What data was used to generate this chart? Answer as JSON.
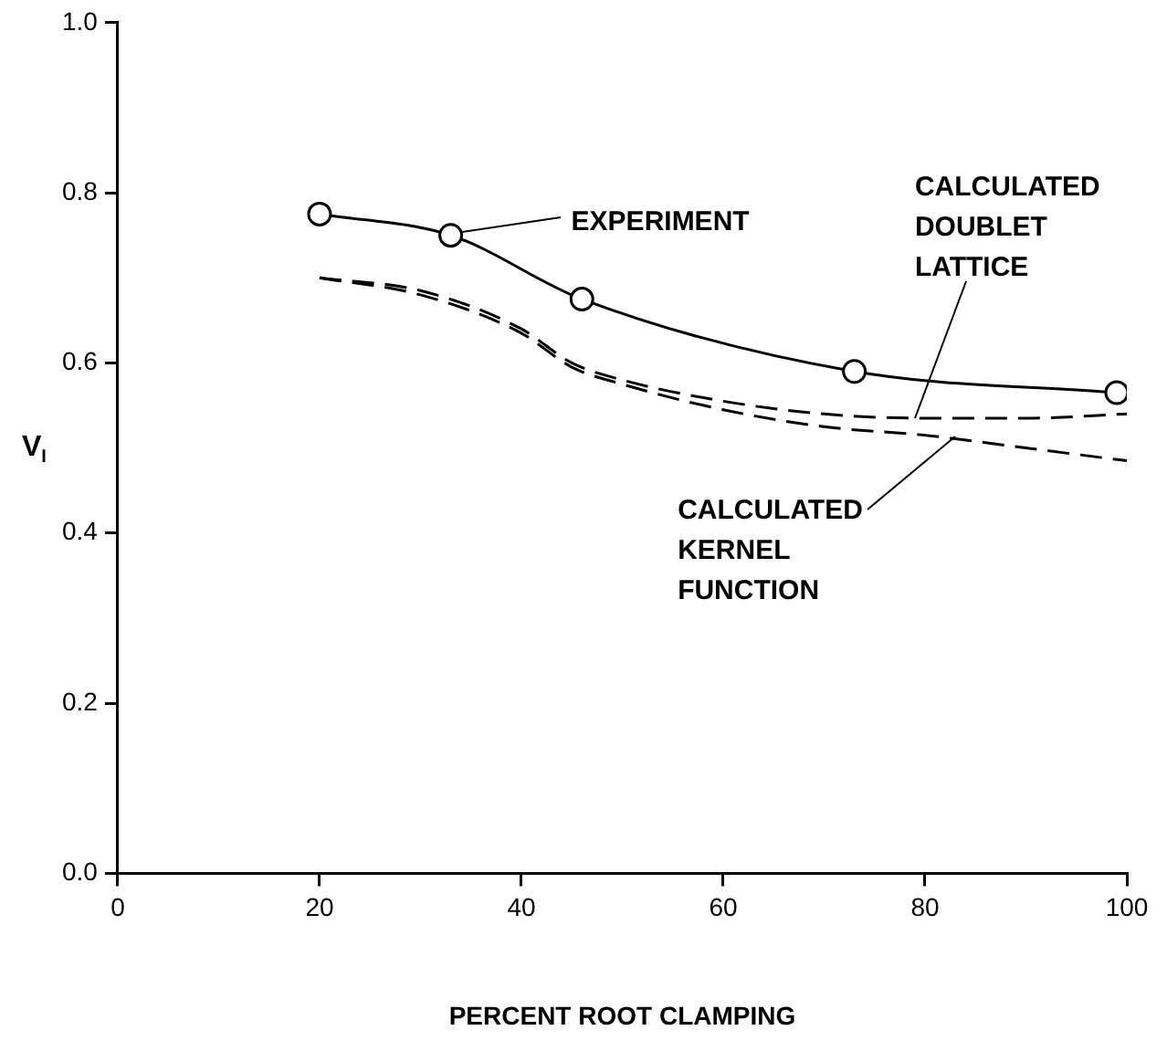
{
  "chart_data": {
    "type": "line",
    "xlabel": "PERCENT ROOT CLAMPING",
    "ylabel": "V$_{I}$",
    "xlim": [
      0,
      100
    ],
    "xticks": [
      0,
      20,
      40,
      60,
      80,
      100
    ],
    "ylim": [
      0,
      1
    ],
    "yticks": [
      {
        "value": 0,
        "label": "0.0"
      },
      {
        "value": 0.2,
        "label": "0.2"
      },
      {
        "value": 0.4,
        "label": "0.4"
      },
      {
        "value": 0.6,
        "label": "0.6"
      },
      {
        "value": 0.8,
        "label": "0.8"
      },
      {
        "value": 1,
        "label": "1.0"
      }
    ],
    "grid": false,
    "legend": false,
    "annotations": [
      {
        "text": "EXPERIMENT",
        "x": 33,
        "y": 0.75
      },
      {
        "text": "CALCULATED DOUBLET LATTICE",
        "x": 79,
        "y": 0.535
      },
      {
        "text": "CALCULATED KERNEL FUNCTION",
        "x": 83,
        "y": 0.513
      }
    ],
    "series": [
      {
        "color": "#000000",
        "marker": "circle",
        "line_style": "solid",
        "x": [
          20,
          33,
          46,
          73,
          99
        ],
        "values": [
          0.775,
          0.75,
          0.675,
          0.59,
          0.565
        ]
      },
      {
        "color": "#000000",
        "marker": "none",
        "line_style": "dashed",
        "x": [
          20,
          30,
          40,
          45,
          50,
          60,
          70,
          80,
          90,
          100
        ],
        "values": [
          0.7,
          0.685,
          0.64,
          0.6,
          0.58,
          0.555,
          0.54,
          0.535,
          0.535,
          0.54
        ]
      },
      {
        "color": "#000000",
        "marker": "none",
        "line_style": "dashed",
        "x": [
          20,
          30,
          40,
          45,
          50,
          60,
          70,
          80,
          90,
          100
        ],
        "values": [
          0.7,
          0.68,
          0.635,
          0.595,
          0.575,
          0.545,
          0.525,
          0.515,
          0.5,
          0.485
        ]
      }
    ]
  }
}
